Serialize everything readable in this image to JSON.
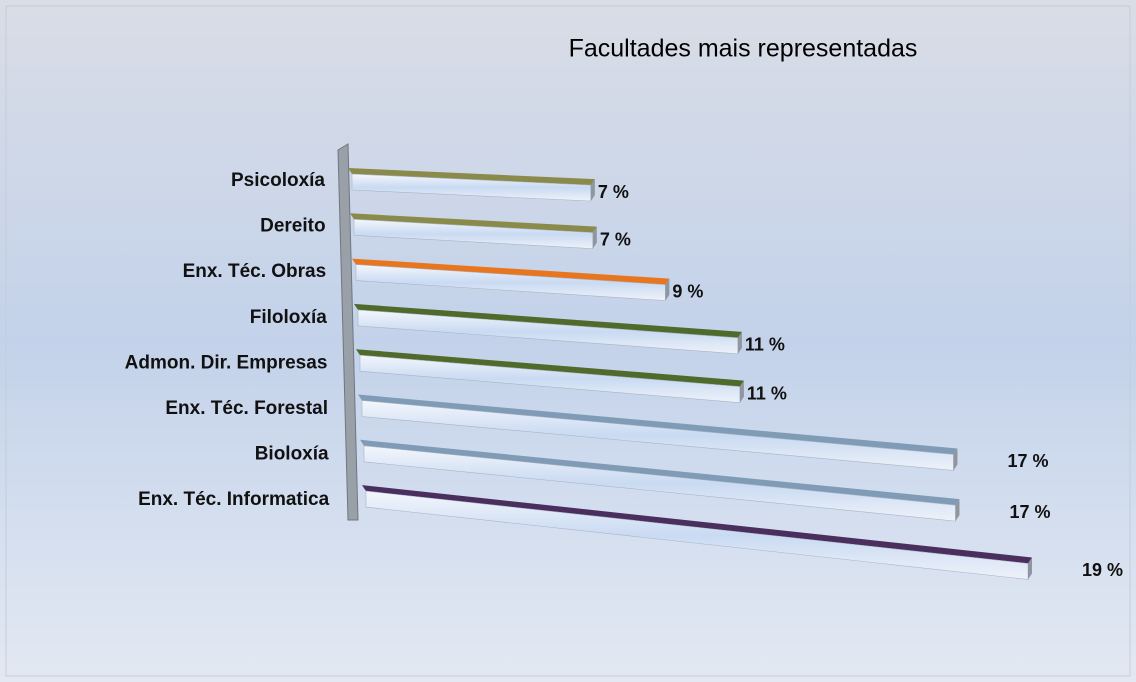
{
  "chart_data": {
    "type": "bar3d",
    "title": "Facultades mais representadas",
    "categories": [
      "Psicoloxía",
      "Dereito",
      "Enx. Téc. Obras",
      "Filoloxía",
      "Admon. Dir. Empresas",
      "Enx. Téc. Forestal",
      "Bioloxía",
      "Enx. Téc.  Informatica"
    ],
    "values": [
      7,
      7,
      9,
      11,
      11,
      17,
      17,
      19
    ],
    "value_labels": [
      "7 %",
      "7 %",
      "9 %",
      "11 %",
      "11 %",
      "17 %",
      "17 %",
      "19 %"
    ],
    "colors": [
      "#8a8a4a",
      "#8a8a4a",
      "#e8761e",
      "#4f6a2a",
      "#4f6a2a",
      "#7f9bb5",
      "#7f9bb5",
      "#4a2e5e"
    ]
  }
}
